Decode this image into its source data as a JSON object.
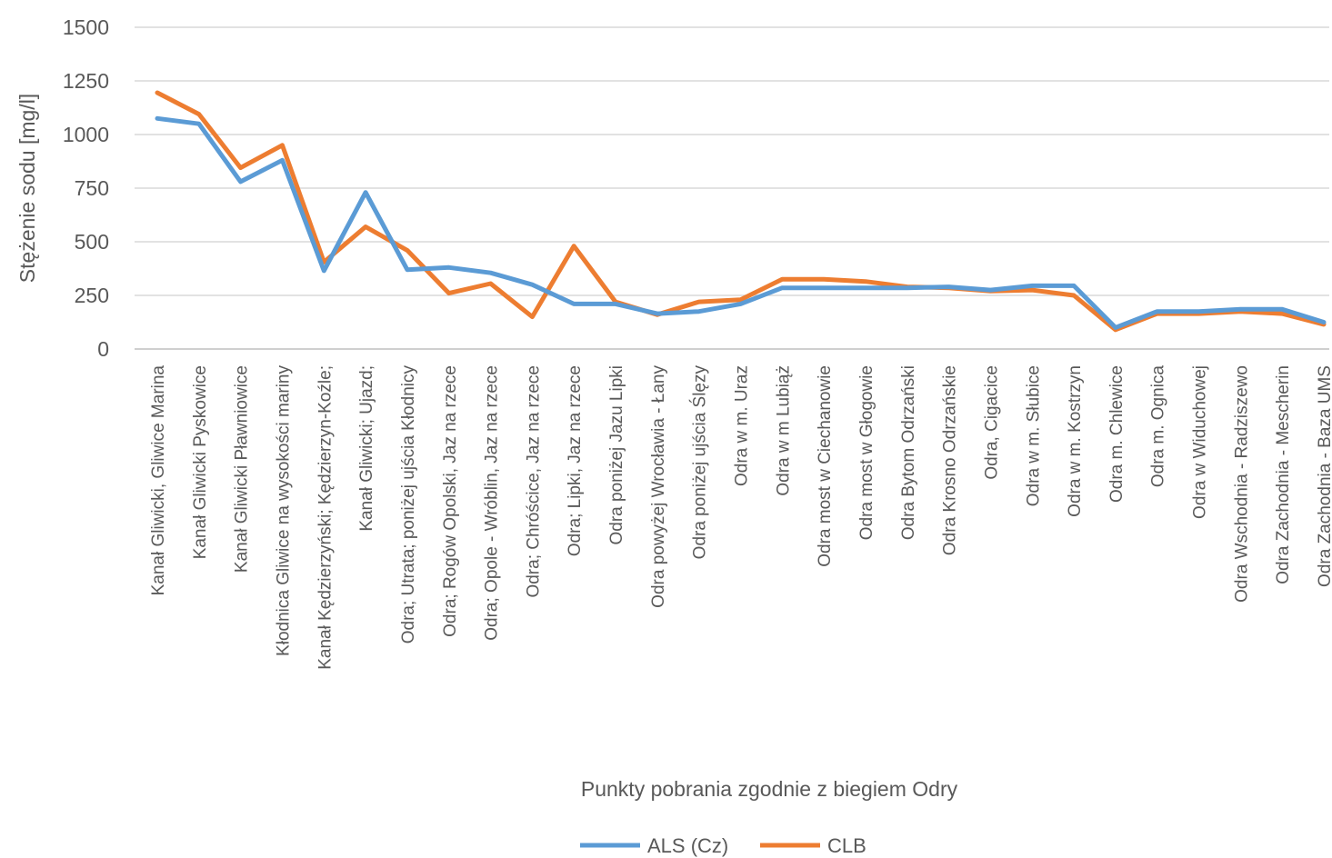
{
  "chart_data": {
    "type": "line",
    "title": "",
    "xlabel": "Punkty pobrania zgodnie z biegiem Odry",
    "ylabel": "Stężenie sodu [mg/l]",
    "ylim": [
      0,
      1500
    ],
    "yticks": [
      "0",
      "250",
      "500",
      "750",
      "1000",
      "1250",
      "1500"
    ],
    "grid": true,
    "legend_position": "bottom",
    "categories": [
      "Kanał Gliwicki, Gliwice Marina",
      "Kanał Gliwicki Pyskowice",
      "Kanał Gliwicki Pławniowice",
      "Kłodnica Gliwice na wysokości mariny",
      "Kanał Kędzierzyński; Kędzierzyn-Koźle;",
      "Kanał Gliwicki; Ujazd;",
      "Odra; Utrata; poniżej ujścia Kłodnicy",
      "Odra; Rogów Opolski, Jaz na rzece",
      "Odra; Opole - Wróblin, Jaz na rzece",
      "Odra; Chróścice, Jaz na rzece",
      "Odra; Lipki, Jaz na rzece",
      "Odra poniżej Jazu Lipki",
      "Odra powyżej Wrocławia - Łany",
      "Odra poniżej ujścia Ślęzy",
      "Odra w m. Uraz",
      "Odra w m Lubiąż",
      "Odra most w Ciechanowie",
      "Odra most w Głogowie",
      "Odra Bytom Odrzański",
      "Odra Krosno Odrzańskie",
      "Odra, Cigacice",
      "Odra w m. Słubice",
      "Odra w m. Kostrzyn",
      "Odra m. Chlewice",
      "Odra m. Ognica",
      "Odra w Widuchowej",
      "Odra Wschodnia - Radziszewo",
      "Odra Zachodnia - Mescherin",
      "Odra Zachodnia - Baza UMS"
    ],
    "series": [
      {
        "name": "ALS (Cz)",
        "color": "#5b9bd5",
        "values": [
          1075,
          1050,
          780,
          880,
          365,
          730,
          370,
          380,
          355,
          300,
          210,
          210,
          165,
          175,
          210,
          285,
          285,
          285,
          285,
          290,
          275,
          295,
          295,
          100,
          175,
          175,
          185,
          185,
          125
        ]
      },
      {
        "name": "CLB",
        "color": "#ed7d31",
        "values": [
          1195,
          1095,
          845,
          950,
          405,
          570,
          460,
          260,
          305,
          150,
          480,
          220,
          160,
          220,
          230,
          325,
          325,
          315,
          290,
          285,
          270,
          275,
          250,
          90,
          165,
          165,
          175,
          165,
          115
        ]
      }
    ]
  }
}
